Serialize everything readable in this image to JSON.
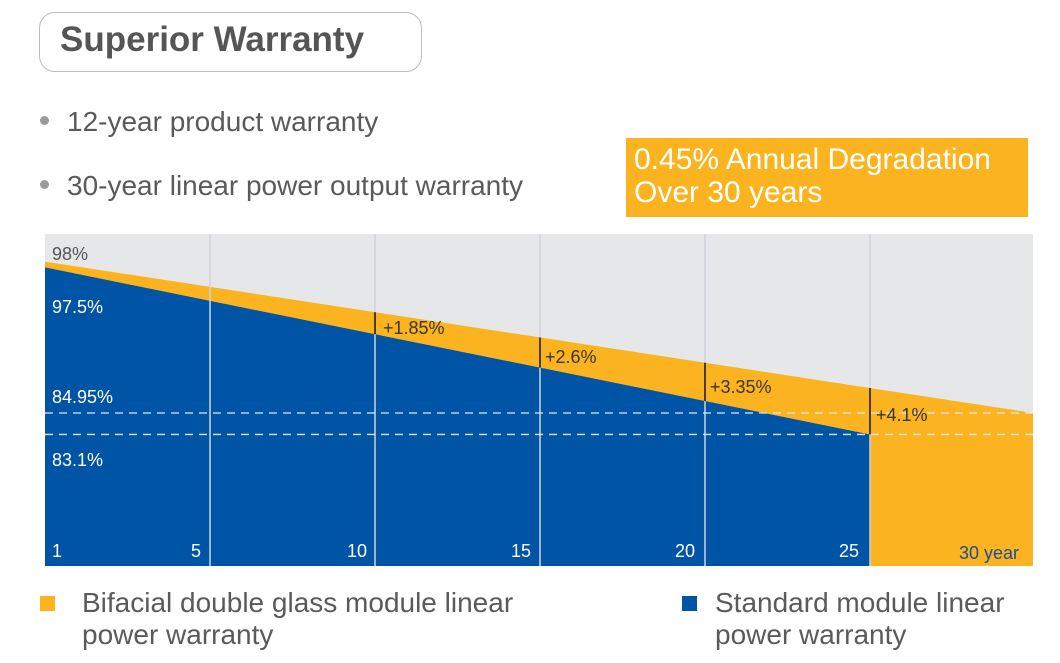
{
  "title": "Superior Warranty",
  "bullets": [
    "12-year product warranty",
    "30-year linear power output warranty"
  ],
  "callout": {
    "line1": "0.45% Annual Degradation",
    "line2": "Over 30 years"
  },
  "colors": {
    "bifacial": "#FBB41F",
    "standard": "#0054A6",
    "background": "#E6E7E8"
  },
  "chart_data": {
    "type": "area",
    "x_ticks": [
      "1",
      "5",
      "10",
      "15",
      "20",
      "25",
      "30 year"
    ],
    "series": [
      {
        "name": "Bifacial double glass module linear power warranty",
        "x": [
          1,
          30
        ],
        "y": [
          98,
          84.95
        ]
      },
      {
        "name": "Standard module linear power warranty",
        "x": [
          1,
          25
        ],
        "y": [
          97.5,
          83.1
        ]
      }
    ],
    "value_labels": [
      "98%",
      "97.5%",
      "84.95%",
      "83.1%"
    ],
    "gain_annotations": [
      {
        "year": 10,
        "label": "+1.85%"
      },
      {
        "year": 15,
        "label": "+2.6%"
      },
      {
        "year": 20,
        "label": "+3.35%"
      },
      {
        "year": 25,
        "label": "+4.1%"
      }
    ],
    "reference_lines": [
      84.95,
      83.1
    ],
    "grid": true,
    "legend": "bottom"
  },
  "legend": [
    {
      "line1": "Bifacial double glass module linear",
      "line2": "power warranty"
    },
    {
      "line1": "Standard module linear",
      "line2": "power warranty"
    }
  ]
}
